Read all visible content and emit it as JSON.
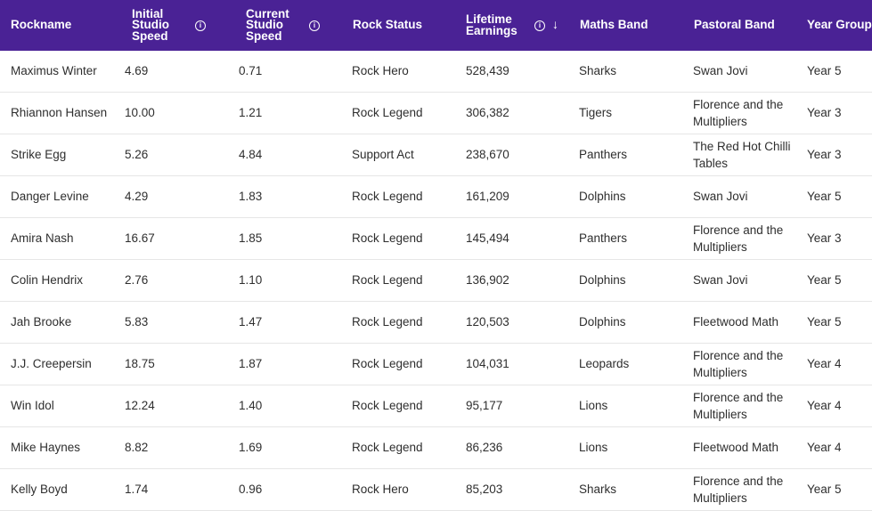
{
  "columns": {
    "rockname": "Rockname",
    "initial_speed": "Initial\nStudio\nSpeed",
    "current_speed": "Current\nStudio\nSpeed",
    "rock_status": "Rock Status",
    "lifetime_earnings": "Lifetime\nEarnings",
    "maths_band": "Maths Band",
    "pastoral_band": "Pastoral Band",
    "year_group": "Year Group"
  },
  "icons": {
    "info": "info-circle-icon",
    "sort": "arrow-down-icon"
  },
  "rows": [
    {
      "name": "Maximus Winter",
      "initial": "4.69",
      "current": "0.71",
      "status": "Rock Hero",
      "earnings": "528,439",
      "maths": "Sharks",
      "pastoral": "Swan Jovi",
      "year": "Year 5"
    },
    {
      "name": "Rhiannon Hansen",
      "initial": "10.00",
      "current": "1.21",
      "status": "Rock Legend",
      "earnings": "306,382",
      "maths": "Tigers",
      "pastoral": "Florence and the Multipliers",
      "year": "Year 3"
    },
    {
      "name": "Strike Egg",
      "initial": "5.26",
      "current": "4.84",
      "status": "Support Act",
      "earnings": "238,670",
      "maths": "Panthers",
      "pastoral": "The Red Hot Chilli Tables",
      "year": "Year 3"
    },
    {
      "name": "Danger Levine",
      "initial": "4.29",
      "current": "1.83",
      "status": "Rock Legend",
      "earnings": "161,209",
      "maths": "Dolphins",
      "pastoral": "Swan Jovi",
      "year": "Year 5"
    },
    {
      "name": "Amira Nash",
      "initial": "16.67",
      "current": "1.85",
      "status": "Rock Legend",
      "earnings": "145,494",
      "maths": "Panthers",
      "pastoral": "Florence and the Multipliers",
      "year": "Year 3"
    },
    {
      "name": "Colin Hendrix",
      "initial": "2.76",
      "current": "1.10",
      "status": "Rock Legend",
      "earnings": "136,902",
      "maths": "Dolphins",
      "pastoral": "Swan Jovi",
      "year": "Year 5"
    },
    {
      "name": "Jah Brooke",
      "initial": "5.83",
      "current": "1.47",
      "status": "Rock Legend",
      "earnings": "120,503",
      "maths": "Dolphins",
      "pastoral": "Fleetwood Math",
      "year": "Year 5"
    },
    {
      "name": "J.J. Creepersin",
      "initial": "18.75",
      "current": "1.87",
      "status": "Rock Legend",
      "earnings": "104,031",
      "maths": "Leopards",
      "pastoral": "Florence and the Multipliers",
      "year": "Year 4"
    },
    {
      "name": "Win Idol",
      "initial": "12.24",
      "current": "1.40",
      "status": "Rock Legend",
      "earnings": "95,177",
      "maths": "Lions",
      "pastoral": "Florence and the Multipliers",
      "year": "Year 4"
    },
    {
      "name": "Mike Haynes",
      "initial": "8.82",
      "current": "1.69",
      "status": "Rock Legend",
      "earnings": "86,236",
      "maths": "Lions",
      "pastoral": "Fleetwood Math",
      "year": "Year 4"
    },
    {
      "name": "Kelly Boyd",
      "initial": "1.74",
      "current": "0.96",
      "status": "Rock Hero",
      "earnings": "85,203",
      "maths": "Sharks",
      "pastoral": "Florence and the Multipliers",
      "year": "Year 5"
    }
  ]
}
